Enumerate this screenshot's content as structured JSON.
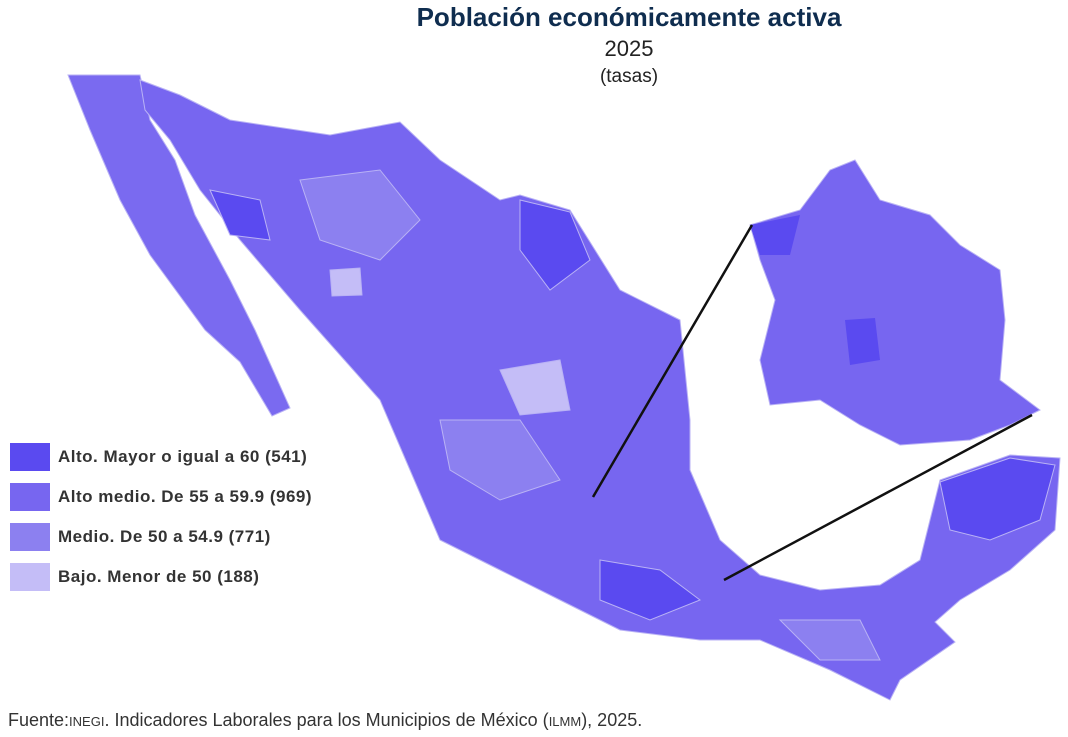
{
  "title": "Población económicamente activa",
  "subtitle": "2025",
  "units": "(tasas)",
  "legend": [
    {
      "label": "Alto. Mayor o igual a 60 (541)",
      "color": "#5a4af0"
    },
    {
      "label": "Alto medio. De 55 a 59.9 (969)",
      "color": "#7766f0"
    },
    {
      "label": "Medio. De 50 a 54.9 (771)",
      "color": "#8c80f0"
    },
    {
      "label": "Bajo. Menor de 50 (188)",
      "color": "#c4bdf7"
    }
  ],
  "source": [
    {
      "text": "Fuente:",
      "smallcaps": false
    },
    {
      "text": "INEGI",
      "smallcaps": true
    },
    {
      "text": ". Indicadores Laborales para los Municipios de México (",
      "smallcaps": false
    },
    {
      "text": "ILMM",
      "smallcaps": true
    },
    {
      "text": "), 2025.",
      "smallcaps": false
    }
  ]
}
